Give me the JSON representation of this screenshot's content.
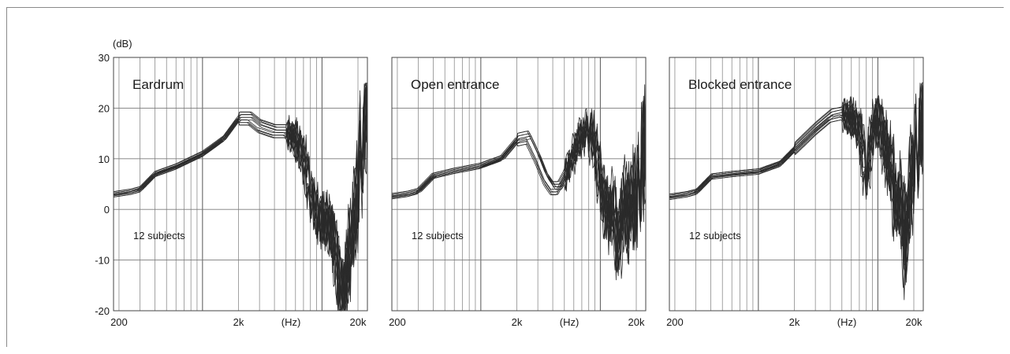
{
  "y_unit_label": "(dB)",
  "chart_data": [
    {
      "type": "line",
      "title": "Eardrum",
      "annotation": "12 subjects",
      "xscale": "log",
      "xlim": [
        180,
        24000
      ],
      "ylim": [
        -20,
        30
      ],
      "yticks": [
        30,
        20,
        10,
        0,
        -10,
        -20
      ],
      "xticks": [
        {
          "v": 200,
          "label": "200"
        },
        {
          "v": 2000,
          "label": "2k"
        },
        {
          "v": 20000,
          "label": "20k"
        }
      ],
      "xunit_label": "(Hz)",
      "grid": true,
      "profile": [
        [
          180,
          3
        ],
        [
          250,
          3.5
        ],
        [
          300,
          4
        ],
        [
          400,
          7
        ],
        [
          600,
          8.5
        ],
        [
          1000,
          11
        ],
        [
          1500,
          14
        ],
        [
          2000,
          18
        ],
        [
          2500,
          18
        ],
        [
          3000,
          16.5
        ],
        [
          4000,
          15.5
        ],
        [
          5000,
          15.5
        ],
        [
          6000,
          14
        ],
        [
          7000,
          10
        ],
        [
          8000,
          3
        ],
        [
          9000,
          0
        ],
        [
          10000,
          -3
        ],
        [
          11000,
          -2
        ],
        [
          12000,
          -4
        ],
        [
          13000,
          -8
        ],
        [
          14000,
          -15
        ],
        [
          15000,
          -18
        ],
        [
          16000,
          -13
        ],
        [
          17000,
          -8
        ],
        [
          18000,
          -5
        ],
        [
          19000,
          0
        ],
        [
          20000,
          6
        ],
        [
          21000,
          10
        ],
        [
          22000,
          14
        ],
        [
          23000,
          17
        ],
        [
          24000,
          20
        ]
      ],
      "n_curves": 12
    },
    {
      "type": "line",
      "title": "Open entrance",
      "annotation": "12 subjects",
      "xscale": "log",
      "xlim": [
        180,
        24000
      ],
      "ylim": [
        -20,
        30
      ],
      "yticks": [
        30,
        20,
        10,
        0,
        -10,
        -20
      ],
      "xticks": [
        {
          "v": 200,
          "label": "200"
        },
        {
          "v": 2000,
          "label": "2k"
        },
        {
          "v": 20000,
          "label": "20k"
        }
      ],
      "xunit_label": "(Hz)",
      "grid": true,
      "profile": [
        [
          180,
          2.5
        ],
        [
          250,
          3
        ],
        [
          300,
          3.5
        ],
        [
          400,
          6.5
        ],
        [
          600,
          7.5
        ],
        [
          1000,
          8.5
        ],
        [
          1500,
          10
        ],
        [
          2000,
          13.5
        ],
        [
          2500,
          14
        ],
        [
          3000,
          10
        ],
        [
          3500,
          6
        ],
        [
          4000,
          4
        ],
        [
          4500,
          4
        ],
        [
          5000,
          6
        ],
        [
          6000,
          11
        ],
        [
          7000,
          14.5
        ],
        [
          8000,
          15.5
        ],
        [
          9000,
          13
        ],
        [
          10000,
          6
        ],
        [
          11000,
          0
        ],
        [
          12000,
          -2
        ],
        [
          13000,
          2
        ],
        [
          14000,
          -8
        ],
        [
          15000,
          -4
        ],
        [
          16000,
          3
        ],
        [
          17000,
          0
        ],
        [
          18000,
          -3
        ],
        [
          19000,
          5
        ],
        [
          20000,
          0
        ],
        [
          22000,
          8
        ],
        [
          24000,
          12
        ]
      ],
      "n_curves": 12
    },
    {
      "type": "line",
      "title": "Blocked entrance",
      "annotation": "12 subjects",
      "xscale": "log",
      "xlim": [
        180,
        24000
      ],
      "ylim": [
        -20,
        30
      ],
      "yticks": [
        30,
        20,
        10,
        0,
        -10,
        -20
      ],
      "xticks": [
        {
          "v": 200,
          "label": "200"
        },
        {
          "v": 2000,
          "label": "2k"
        },
        {
          "v": 20000,
          "label": "20k"
        }
      ],
      "xunit_label": "(Hz)",
      "grid": true,
      "profile": [
        [
          180,
          2.5
        ],
        [
          250,
          3
        ],
        [
          300,
          3.5
        ],
        [
          400,
          6.5
        ],
        [
          600,
          7
        ],
        [
          1000,
          7.5
        ],
        [
          1500,
          9
        ],
        [
          2000,
          12
        ],
        [
          3000,
          16
        ],
        [
          4000,
          18.5
        ],
        [
          5000,
          19
        ],
        [
          6000,
          18
        ],
        [
          7000,
          16
        ],
        [
          7500,
          10
        ],
        [
          8000,
          5
        ],
        [
          8500,
          12
        ],
        [
          9000,
          17
        ],
        [
          10000,
          18
        ],
        [
          11000,
          14
        ],
        [
          12000,
          10
        ],
        [
          13000,
          8
        ],
        [
          14000,
          0
        ],
        [
          15000,
          3
        ],
        [
          16000,
          -2
        ],
        [
          17000,
          -10
        ],
        [
          18000,
          2
        ],
        [
          19000,
          8
        ],
        [
          20000,
          10
        ],
        [
          22000,
          14
        ],
        [
          24000,
          18
        ]
      ],
      "n_curves": 12
    }
  ]
}
